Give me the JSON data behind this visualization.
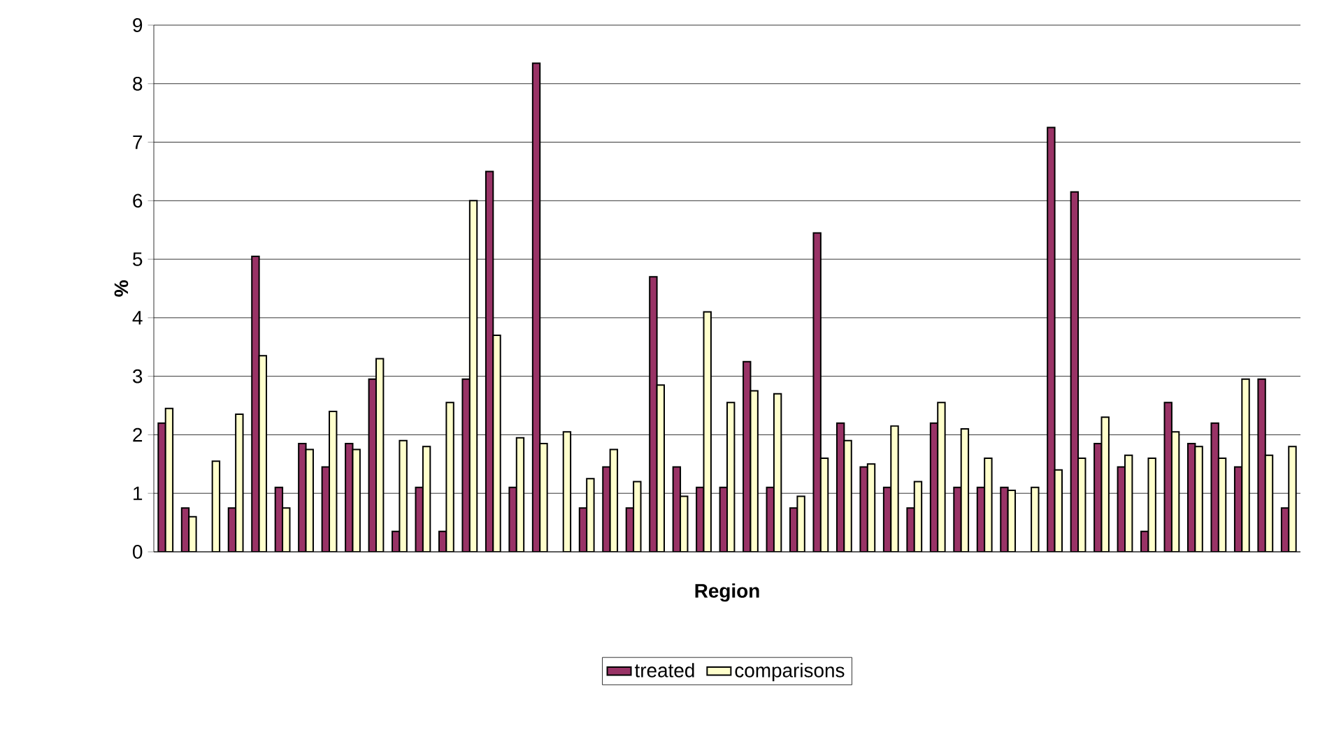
{
  "chart_data": {
    "type": "bar",
    "xlabel": "Region",
    "ylabel": "%",
    "categories": [
      null,
      null,
      null,
      null,
      null,
      null,
      null,
      null,
      null,
      null,
      null,
      null,
      null,
      null,
      null,
      null,
      null,
      null,
      null,
      null,
      null,
      null,
      null,
      null,
      null,
      null,
      null,
      null,
      null,
      null,
      null,
      null,
      null,
      null,
      null,
      null,
      null,
      null,
      null,
      null,
      null,
      null,
      null,
      null,
      null,
      null,
      null,
      null,
      null
    ],
    "series": [
      {
        "name": "treated",
        "color": "#993366",
        "values": [
          2.2,
          0.75,
          null,
          0.75,
          5.05,
          1.1,
          1.85,
          1.45,
          1.85,
          2.95,
          0.35,
          1.1,
          0.35,
          2.95,
          6.5,
          1.1,
          8.35,
          null,
          0.75,
          1.45,
          0.75,
          4.7,
          1.45,
          1.1,
          1.1,
          3.25,
          1.1,
          0.75,
          5.45,
          2.2,
          1.45,
          1.1,
          0.75,
          2.2,
          1.1,
          1.1,
          1.1,
          null,
          7.25,
          6.15,
          1.85,
          1.45,
          0.35,
          2.55,
          1.85,
          2.2,
          1.45,
          2.95,
          0.75
        ]
      },
      {
        "name": "comparisons",
        "color": "#ffffcc",
        "values": [
          2.45,
          0.6,
          1.55,
          2.35,
          3.35,
          0.75,
          1.75,
          2.4,
          1.75,
          3.3,
          1.9,
          1.8,
          2.55,
          6.0,
          3.7,
          1.95,
          1.85,
          2.05,
          1.25,
          1.75,
          1.2,
          2.85,
          0.95,
          4.1,
          2.55,
          2.75,
          2.7,
          0.95,
          1.6,
          1.9,
          1.5,
          2.15,
          1.2,
          2.55,
          2.1,
          1.6,
          1.05,
          1.1,
          1.4,
          1.6,
          2.3,
          1.65,
          1.6,
          2.05,
          1.8,
          1.6,
          2.95,
          1.65,
          1.8
        ]
      }
    ],
    "ylim": [
      0,
      9
    ],
    "yticks": [
      0,
      1,
      2,
      3,
      4,
      5,
      6,
      7,
      8,
      9
    ],
    "grid": "y",
    "legend": "bottom",
    "tick_labels": "y"
  }
}
